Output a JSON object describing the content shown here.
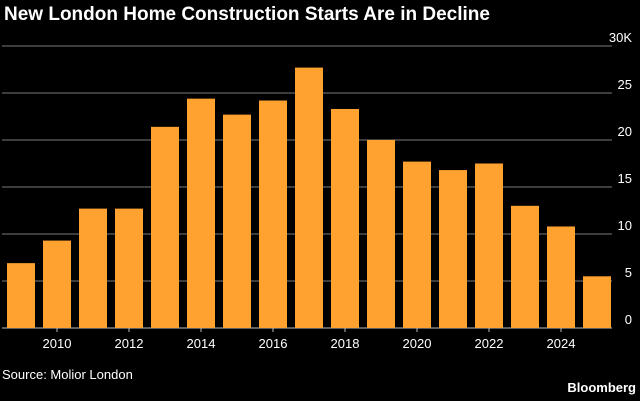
{
  "colors": {
    "background": "#000000",
    "bar": "#FFA22F",
    "grid": "#7a7a7a",
    "text": "#ffffff"
  },
  "chart_data": {
    "type": "bar",
    "title": "New London Home Construction Starts Are in Decline",
    "categories": [
      "2009",
      "2010",
      "2011",
      "2012",
      "2013",
      "2014",
      "2015",
      "2016",
      "2017",
      "2018",
      "2019",
      "2020",
      "2021",
      "2022",
      "2023",
      "2024",
      "2025"
    ],
    "values": [
      6900,
      9300,
      12700,
      12700,
      21400,
      24400,
      22700,
      24200,
      27700,
      23300,
      20000,
      17700,
      16800,
      17500,
      13000,
      10800,
      5500
    ],
    "x_tick_labels": [
      "2010",
      "2012",
      "2014",
      "2016",
      "2018",
      "2020",
      "2022",
      "2024"
    ],
    "y_tick_labels": [
      "0",
      "5",
      "10",
      "15",
      "20",
      "25",
      "30K"
    ],
    "ylim": [
      0,
      30000
    ],
    "grid": true,
    "xlabel": "",
    "ylabel": ""
  },
  "footer": {
    "source": "Source: Molior London",
    "brand": "Bloomberg"
  }
}
